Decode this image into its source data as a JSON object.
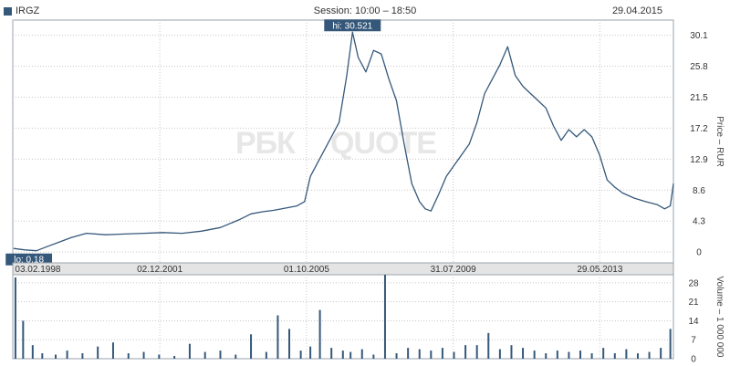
{
  "header": {
    "ticker": "IRGZ",
    "session": "Session: 10:00 – 18:50",
    "date": "29.04.2015"
  },
  "watermark": {
    "left": "РБК",
    "right": "QUOTE"
  },
  "colors": {
    "line": "#35587a",
    "grid": "#c8c8c8",
    "frame": "#9aa3ac",
    "label_bg": "#35587a",
    "strip_bg": "#e4e4e4"
  },
  "chart_data": [
    {
      "type": "line",
      "title": "",
      "ylabel": "Price – RUR",
      "yticks": [
        0,
        4.3,
        8.6,
        12.9,
        17.2,
        21.5,
        25.8,
        30.1
      ],
      "ylim": [
        -1.5,
        32.2
      ],
      "xlim": [
        1998.08,
        2015.33
      ],
      "x_tick_labels": [
        {
          "x": 1998.09,
          "label": "03.02.1998"
        },
        {
          "x": 2001.92,
          "label": "02.12.2001"
        },
        {
          "x": 2005.75,
          "label": "01.10.2005"
        },
        {
          "x": 2009.58,
          "label": "31.07.2009"
        },
        {
          "x": 2013.41,
          "label": "29.05.2013"
        }
      ],
      "annotations": {
        "hi_label": "hi: 30.521",
        "hi_x": 2006.95,
        "hi_y": 30.521,
        "lo_label": "lo: 0.18",
        "lo_x": 1998.5,
        "lo_y": 0.18
      },
      "series": [
        {
          "x": [
            1998.1,
            1998.4,
            1998.7,
            1999.0,
            1999.3,
            1999.6,
            2000.0,
            2000.5,
            2001.0,
            2001.5,
            2002.0,
            2002.5,
            2003.0,
            2003.5,
            2004.0,
            2004.3,
            2004.6,
            2004.9,
            2005.2,
            2005.5,
            2005.7,
            2005.85,
            2006.0,
            2006.2,
            2006.4,
            2006.6,
            2006.8,
            2006.95,
            2007.1,
            2007.3,
            2007.5,
            2007.7,
            2007.9,
            2008.1,
            2008.3,
            2008.5,
            2008.7,
            2008.85,
            2009.0,
            2009.2,
            2009.4,
            2009.6,
            2009.8,
            2010.0,
            2010.2,
            2010.4,
            2010.6,
            2010.8,
            2011.0,
            2011.2,
            2011.4,
            2011.6,
            2011.8,
            2012.0,
            2012.2,
            2012.4,
            2012.6,
            2012.8,
            2013.0,
            2013.2,
            2013.4,
            2013.6,
            2013.8,
            2014.0,
            2014.3,
            2014.6,
            2014.9,
            2015.1,
            2015.25,
            2015.33
          ],
          "y": [
            0.5,
            0.3,
            0.18,
            0.8,
            1.4,
            2.0,
            2.6,
            2.4,
            2.5,
            2.6,
            2.7,
            2.6,
            2.9,
            3.4,
            4.5,
            5.3,
            5.6,
            5.8,
            6.1,
            6.4,
            7.0,
            10.5,
            12.0,
            14.0,
            16.0,
            18.0,
            24.5,
            30.521,
            27.0,
            25.0,
            28.0,
            27.5,
            24.0,
            21.0,
            15.0,
            9.5,
            7.0,
            6.0,
            5.7,
            8.0,
            10.5,
            12.0,
            13.5,
            15.0,
            18.0,
            22.0,
            24.0,
            26.0,
            28.5,
            24.5,
            23.0,
            22.0,
            21.0,
            20.0,
            17.5,
            15.5,
            17.0,
            16.0,
            17.0,
            16.0,
            13.5,
            10.0,
            9.0,
            8.2,
            7.5,
            7.0,
            6.6,
            6.0,
            6.4,
            9.5
          ]
        }
      ]
    },
    {
      "type": "bar",
      "title": "",
      "ylabel": "Volume – 1 000 000",
      "yticks": [
        0,
        7,
        14,
        21,
        28
      ],
      "ylim": [
        0,
        31
      ],
      "x": [
        1998.15,
        1998.35,
        1998.6,
        1998.85,
        1999.2,
        1999.5,
        1999.9,
        2000.3,
        2000.7,
        2001.1,
        2001.5,
        2001.9,
        2002.3,
        2002.7,
        2003.1,
        2003.5,
        2003.9,
        2004.3,
        2004.7,
        2005.0,
        2005.3,
        2005.6,
        2005.85,
        2006.1,
        2006.4,
        2006.7,
        2006.9,
        2007.2,
        2007.5,
        2007.8,
        2008.1,
        2008.4,
        2008.7,
        2009.0,
        2009.3,
        2009.6,
        2009.9,
        2010.2,
        2010.5,
        2010.8,
        2011.1,
        2011.4,
        2011.7,
        2012.0,
        2012.3,
        2012.6,
        2012.9,
        2013.2,
        2013.5,
        2013.8,
        2014.1,
        2014.4,
        2014.7,
        2015.0,
        2015.25
      ],
      "values": [
        30,
        14,
        5,
        2,
        1.5,
        3,
        2,
        4.5,
        6,
        2,
        2.5,
        1.5,
        1,
        5.5,
        2.5,
        3,
        1.5,
        9,
        2.5,
        16,
        11,
        3,
        4.5,
        18,
        4,
        3,
        2.5,
        3.5,
        1.5,
        31,
        2,
        4,
        3.5,
        3,
        4,
        2.5,
        5,
        5,
        9.5,
        3.5,
        5,
        4,
        3,
        2,
        3,
        2.5,
        3,
        2,
        4,
        2,
        3.5,
        2,
        2.5,
        4,
        11
      ]
    }
  ]
}
